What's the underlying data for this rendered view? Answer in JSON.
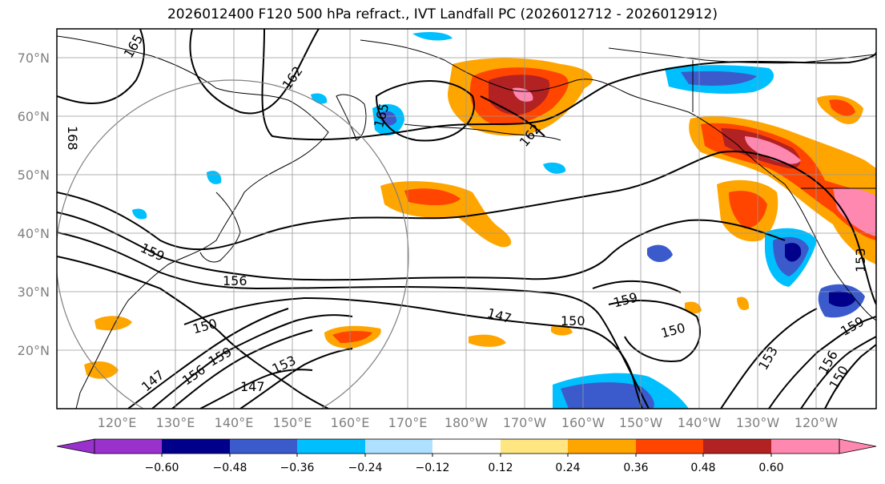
{
  "title": "2026012400 F120 500 hPa refract., IVT Landfall PC (2026012712 - 2026012912)",
  "latitude_labels": [
    "70°N",
    "60°N",
    "50°N",
    "40°N",
    "30°N",
    "20°N"
  ],
  "longitude_labels": [
    "120°E",
    "130°E",
    "140°E",
    "150°E",
    "160°E",
    "170°E",
    "180°W",
    "170°W",
    "160°W",
    "150°W",
    "140°W",
    "130°W",
    "120°W"
  ],
  "colorbar": {
    "tick_labels": [
      "−0.60",
      "−0.48",
      "−0.36",
      "−0.24",
      "−0.12",
      "0.12",
      "0.24",
      "0.36",
      "0.48",
      "0.60"
    ],
    "colors": [
      "#9932cc",
      "#00008b",
      "#3b5bcc",
      "#00bfff",
      "#b0e0ff",
      "#ffffff",
      "#ffe680",
      "#ffa500",
      "#ff4500",
      "#b22222",
      "#ff88b0"
    ]
  },
  "contour_labels": [
    "162",
    "165",
    "165",
    "162",
    "168",
    "159",
    "156",
    "150",
    "159",
    "156",
    "147",
    "153",
    "147",
    "150",
    "159",
    "150",
    "159",
    "153",
    "156",
    "150",
    "153"
  ],
  "colors": {
    "contour": "#000000",
    "grid": "#999999",
    "coast": "#000000",
    "circle": "#808080"
  }
}
